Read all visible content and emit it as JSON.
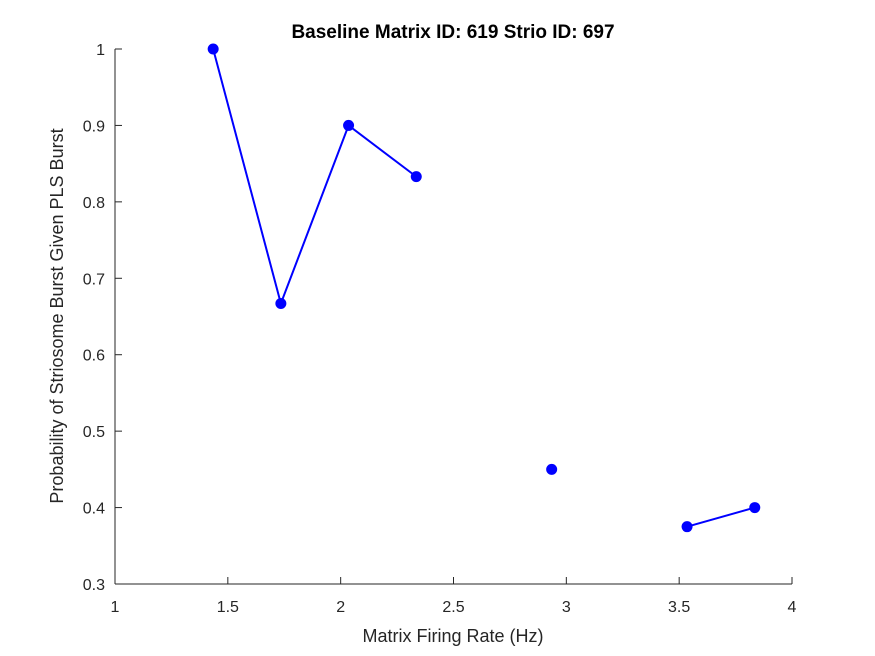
{
  "chart_data": {
    "type": "line",
    "title": "Baseline Matrix ID: 619 Strio ID: 697",
    "xlabel": "Matrix Firing Rate (Hz)",
    "ylabel": "Probability of Striosome Burst Given PLS Burst",
    "xlim": [
      1,
      4
    ],
    "ylim": [
      0.3,
      1
    ],
    "xticks": [
      1,
      1.5,
      2,
      2.5,
      3,
      3.5,
      4
    ],
    "xtick_labels": [
      "1",
      "1.5",
      "2",
      "2.5",
      "3",
      "3.5",
      "4"
    ],
    "yticks": [
      0.3,
      0.4,
      0.5,
      0.6,
      0.7,
      0.8,
      0.9,
      1
    ],
    "ytick_labels": [
      "0.3",
      "0.4",
      "0.5",
      "0.6",
      "0.7",
      "0.8",
      "0.9",
      "1"
    ],
    "grid": false,
    "legend": "none",
    "series": [
      {
        "color": "#0000ff",
        "marker": "filled-circle",
        "segments": [
          {
            "x": [
              1.435,
              1.735,
              2.035,
              2.335
            ],
            "y": [
              1.0,
              0.667,
              0.9,
              0.833
            ]
          },
          {
            "x": [
              2.935
            ],
            "y": [
              0.45
            ]
          },
          {
            "x": [
              3.535,
              3.835
            ],
            "y": [
              0.375,
              0.4
            ]
          }
        ]
      }
    ]
  }
}
